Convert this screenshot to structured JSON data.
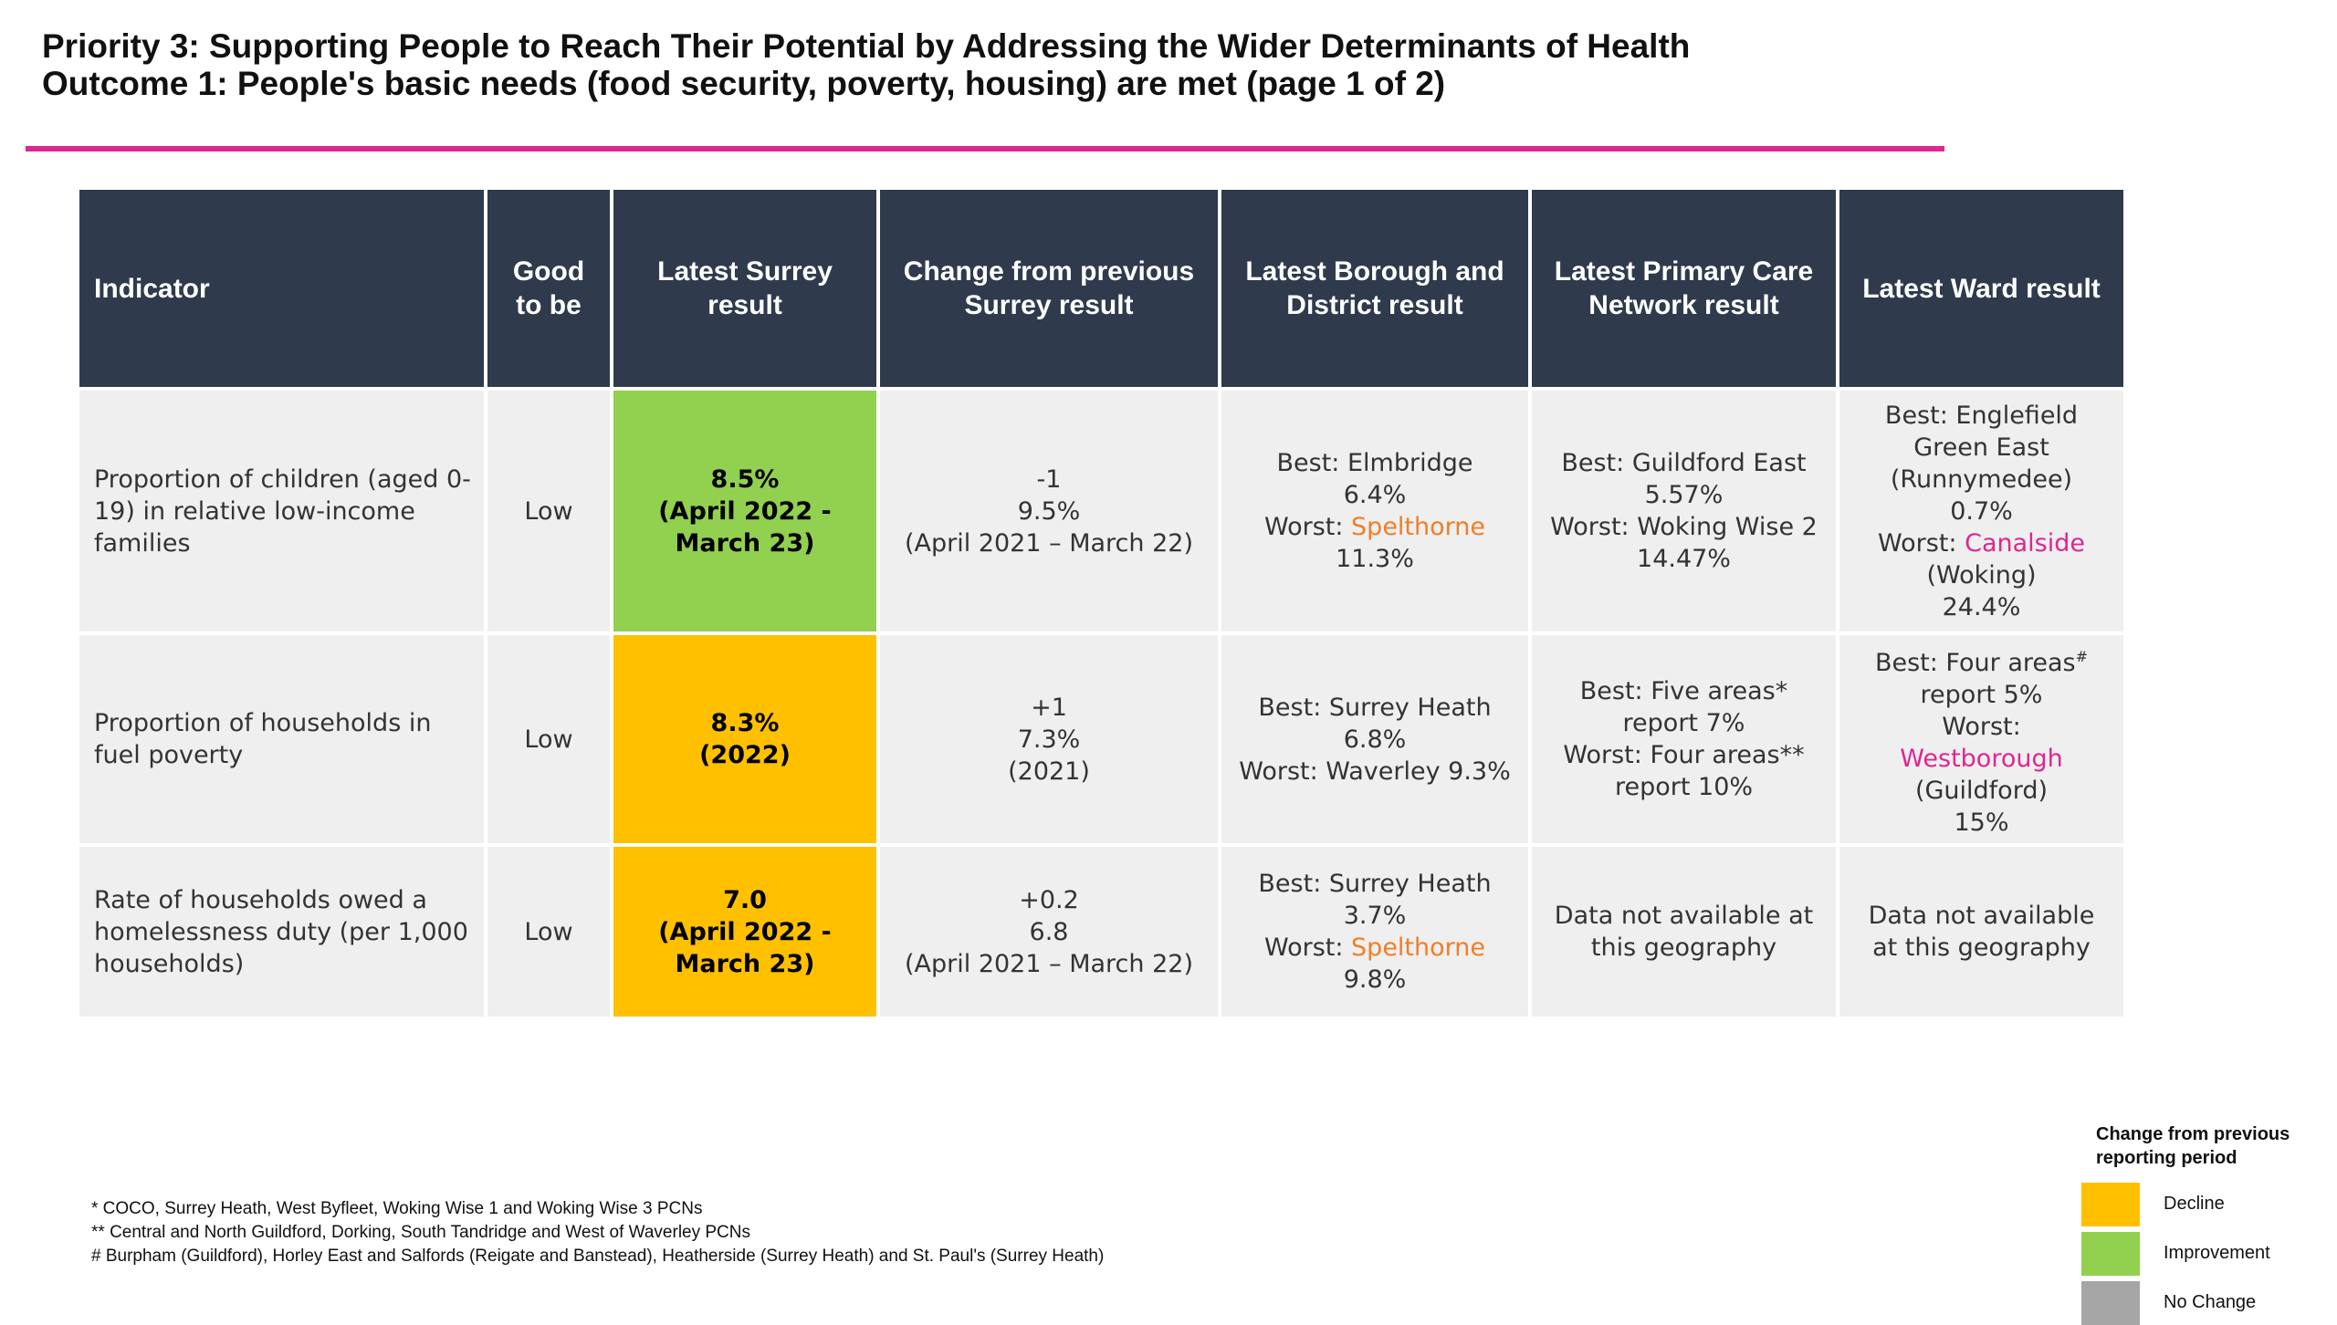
{
  "title": {
    "line1": "Priority 3: Supporting People to Reach Their Potential by Addressing the Wider Determinants of Health",
    "line2": "Outcome 1: People's basic needs (food security, poverty, housing) are met  (page 1 of 2)"
  },
  "colors": {
    "accent_rule": "#e0268f",
    "header_bg": "#2f3a4d",
    "cell_bg": "#efefef",
    "improvement": "#92d050",
    "decline": "#ffc000",
    "no_change": "#a6a6a6",
    "highlight_orange": "#f07e26",
    "highlight_pink": "#e0268f"
  },
  "table": {
    "headers": {
      "indicator": "Indicator",
      "good_to_be": "Good to be",
      "latest_surrey": "Latest Surrey result",
      "change": "Change from previous Surrey result",
      "borough": "Latest Borough and District result",
      "pcn": "Latest Primary Care Network result",
      "ward": "Latest Ward result"
    },
    "rows": [
      {
        "indicator": "Proportion of children (aged 0-19) in relative low-income families",
        "good_to_be": "Low",
        "surrey_value": "8.5%",
        "surrey_period": "(April 2022 - March 23)",
        "status": "Improvement",
        "change_value": "-1",
        "prev_value": "9.5%",
        "prev_period": "(April 2021 – March 22)",
        "borough_best": "Best: Elmbridge",
        "borough_best_value": "6.4%",
        "borough_worst_label": "Worst:",
        "borough_worst_name": "Spelthorne",
        "borough_worst_value": "11.3%",
        "pcn_best": "Best: Guildford East",
        "pcn_best_value": "5.57%",
        "pcn_worst": "Worst: Woking Wise 2",
        "pcn_worst_value": "14.47%",
        "ward_best": "Best: Englefield Green East",
        "ward_best_area": "(Runnymedee)",
        "ward_best_value": "0.7%",
        "ward_worst_label": "Worst:",
        "ward_worst_name": "Canalside",
        "ward_worst_area": "(Woking)",
        "ward_worst_value": "24.4%"
      },
      {
        "indicator": "Proportion of households in fuel poverty",
        "good_to_be": "Low",
        "surrey_value": "8.3%",
        "surrey_period": "(2022)",
        "status": "Decline",
        "change_value": "+1",
        "prev_value": "7.3%",
        "prev_period": "(2021)",
        "borough_best": "Best: Surrey Heath",
        "borough_best_value": "6.8%",
        "borough_worst": "Worst: Waverley 9.3%",
        "pcn_best": "Best: Five areas*",
        "pcn_best_value": "report 7%",
        "pcn_worst": "Worst: Four areas**",
        "pcn_worst_value": "report 10%",
        "ward_best": "Best: Four areas",
        "ward_best_mark": "#",
        "ward_best_value": "report 5%",
        "ward_worst_label": "Worst:",
        "ward_worst_name": "Westborough",
        "ward_worst_area": "(Guildford)",
        "ward_worst_value": "15%"
      },
      {
        "indicator": "Rate of households owed a homelessness duty (per 1,000 households)",
        "good_to_be": "Low",
        "surrey_value": "7.0",
        "surrey_period": "(April 2022 - March 23)",
        "status": "Decline",
        "change_value": "+0.2",
        "prev_value": "6.8",
        "prev_period": "(April 2021 – March 22)",
        "borough_best": "Best: Surrey Heath",
        "borough_best_value": "3.7%",
        "borough_worst_label": "Worst:",
        "borough_worst_name": "Spelthorne",
        "borough_worst_value": "9.8%",
        "pcn_text": "Data not available at this geography",
        "ward_text": "Data not available at this geography"
      }
    ]
  },
  "footnotes": [
    "* COCO, Surrey Heath, West Byfleet, Woking Wise 1 and Woking Wise 3 PCNs",
    "** Central and North Guildford, Dorking, South Tandridge and West of Waverley PCNs",
    "# Burpham (Guildford), Horley East and Salfords (Reigate and Banstead), Heatherside (Surrey Heath) and St. Paul's (Surrey Heath)"
  ],
  "legend": {
    "title": "Change from previous reporting period",
    "items": [
      {
        "label": "Decline",
        "color": "#ffc000"
      },
      {
        "label": "Improvement",
        "color": "#92d050"
      },
      {
        "label": "No Change",
        "color": "#a6a6a6"
      }
    ]
  }
}
